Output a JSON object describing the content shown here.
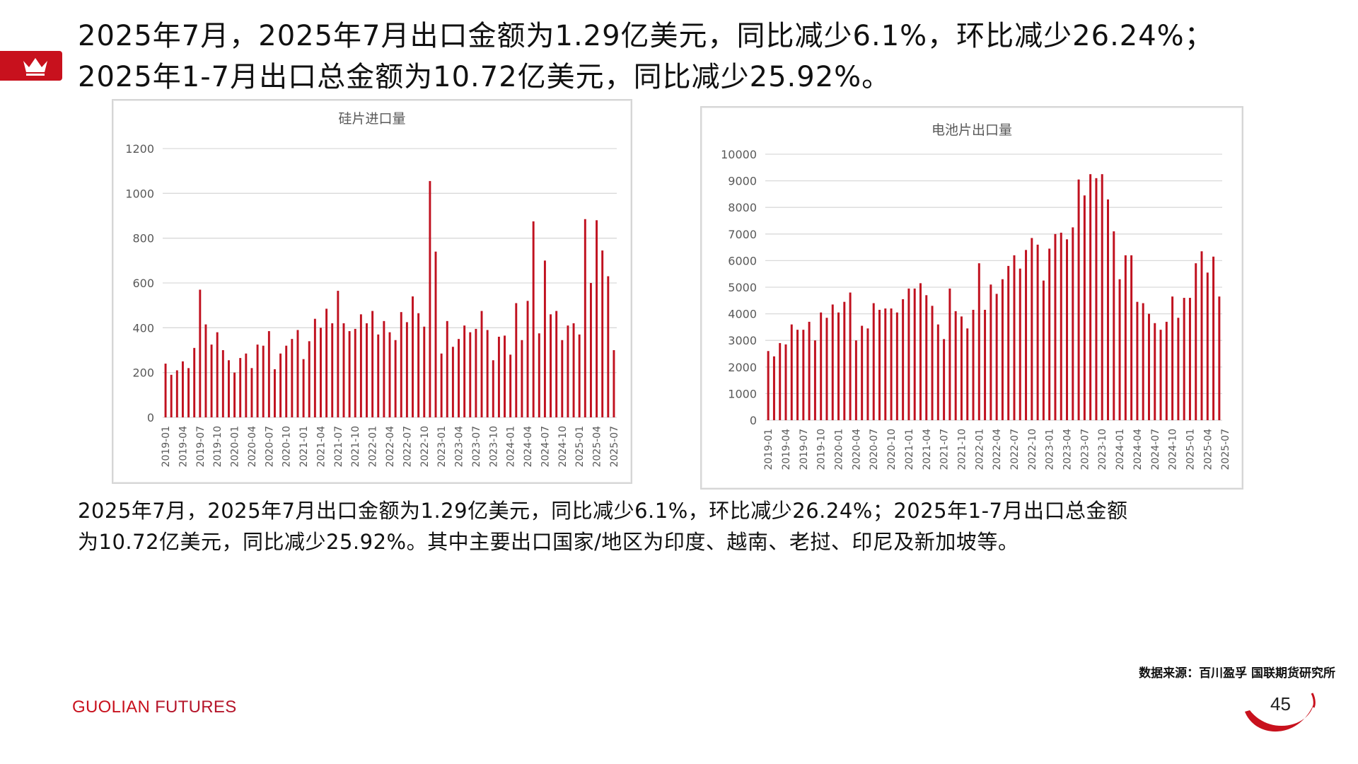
{
  "headline": {
    "line1": "2025年7月，2025年7月出口金额为1.29亿美元，同比减少6.1%，环比减少26.24%；",
    "line2": "2025年1-7月出口总金额为10.72亿美元，同比减少25.92%。"
  },
  "body": {
    "line1": "2025年7月，2025年7月出口金额为1.29亿美元，同比减少6.1%，环比减少26.24%；2025年1-7月出口总金额",
    "line2": "为10.72亿美元，同比减少25.92%。其中主要出口国家/地区为印度、越南、老挝、印尼及新加坡等。"
  },
  "source": "数据来源：百川盈孚  国联期货研究所",
  "brand": {
    "a": "GUOLIAN",
    "b": " FUTURES"
  },
  "page_number": "45",
  "colors": {
    "bar": "#c0111f",
    "accent": "#c8111d",
    "grid": "#d9d9d9"
  },
  "icons": {
    "crown": "crown-icon"
  },
  "chart_data": [
    {
      "type": "bar",
      "title": "硅片进口量",
      "ylim": [
        0,
        1200
      ],
      "yticks": [
        0,
        200,
        400,
        600,
        800,
        1000,
        1200
      ],
      "x_tick_labels": [
        "2019-01",
        "2019-04",
        "2019-07",
        "2019-10",
        "2020-01",
        "2020-04",
        "2020-07",
        "2020-10",
        "2021-01",
        "2021-04",
        "2021-07",
        "2021-10",
        "2022-01",
        "2022-04",
        "2022-07",
        "2022-10",
        "2023-01",
        "2023-04",
        "2023-07",
        "2023-10",
        "2024-01",
        "2024-04",
        "2024-07",
        "2024-10",
        "2025-01",
        "2025-04",
        "2025-07"
      ],
      "start": "2019-01",
      "values": [
        240,
        190,
        210,
        250,
        220,
        310,
        570,
        415,
        325,
        380,
        300,
        255,
        200,
        265,
        285,
        220,
        325,
        320,
        385,
        215,
        285,
        320,
        350,
        390,
        260,
        340,
        440,
        400,
        485,
        420,
        565,
        420,
        385,
        395,
        460,
        420,
        475,
        370,
        430,
        380,
        345,
        470,
        425,
        540,
        465,
        405,
        1055,
        740,
        285,
        430,
        315,
        350,
        410,
        380,
        395,
        475,
        390,
        255,
        360,
        365,
        280,
        510,
        345,
        520,
        875,
        375,
        700,
        460,
        475,
        345,
        410,
        420,
        370,
        885,
        600,
        880,
        745,
        630,
        300
      ]
    },
    {
      "type": "bar",
      "title": "电池片出口量",
      "ylim": [
        0,
        10000
      ],
      "yticks": [
        0,
        1000,
        2000,
        3000,
        4000,
        5000,
        6000,
        7000,
        8000,
        9000,
        10000
      ],
      "x_tick_labels": [
        "2019-01",
        "2019-04",
        "2019-07",
        "2019-10",
        "2020-01",
        "2020-04",
        "2020-07",
        "2020-10",
        "2021-01",
        "2021-04",
        "2021-07",
        "2021-10",
        "2022-01",
        "2022-04",
        "2022-07",
        "2022-10",
        "2023-01",
        "2023-04",
        "2023-07",
        "2023-10",
        "2024-01",
        "2024-04",
        "2024-07",
        "2024-10",
        "2025-01",
        "2025-04",
        "2025-07"
      ],
      "start": "2019-01",
      "values": [
        2600,
        2400,
        2900,
        2850,
        3600,
        3400,
        3400,
        3700,
        3000,
        4050,
        3850,
        4350,
        4050,
        4450,
        4800,
        3000,
        3550,
        3450,
        4400,
        4150,
        4200,
        4200,
        4050,
        4550,
        4950,
        4950,
        5150,
        4700,
        4300,
        3600,
        3050,
        4950,
        4100,
        3900,
        3450,
        4150,
        5900,
        4150,
        5100,
        4750,
        5300,
        5800,
        6200,
        5700,
        6400,
        6850,
        6600,
        5250,
        6450,
        7000,
        7050,
        6800,
        7250,
        9050,
        8450,
        9250,
        9100,
        9250,
        8300,
        7100,
        5300,
        6200,
        6200,
        4450,
        4400,
        4000,
        3650,
        3400,
        3700,
        4650,
        3850,
        4600,
        4600,
        5900,
        6350,
        5550,
        6150,
        4650
      ]
    }
  ]
}
